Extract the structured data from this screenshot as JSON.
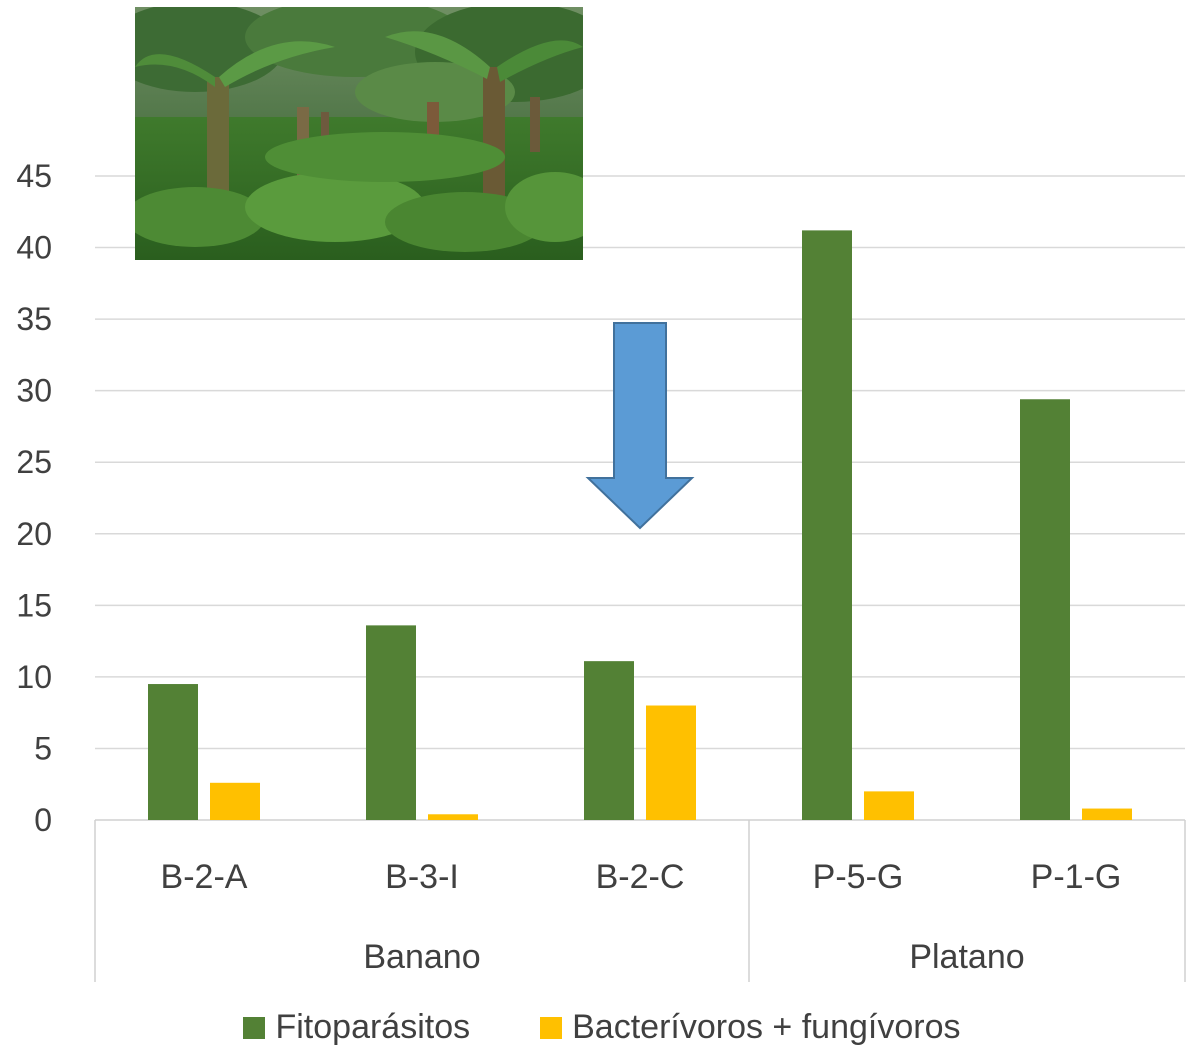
{
  "chart_data": {
    "type": "bar",
    "ylim": [
      0,
      45
    ],
    "yticks": [
      0,
      5,
      10,
      15,
      20,
      25,
      30,
      35,
      40,
      45
    ],
    "grid": true,
    "categories": [
      "B-2-A",
      "B-3-I",
      "B-2-C",
      "P-5-G",
      "P-1-G"
    ],
    "groups": [
      {
        "label": "Banano",
        "categories": [
          "B-2-A",
          "B-3-I",
          "B-2-C"
        ]
      },
      {
        "label": "Platano",
        "categories": [
          "P-5-G",
          "P-1-G"
        ]
      }
    ],
    "series": [
      {
        "name": "Fitoparásitos",
        "color": "#538135",
        "values": [
          9.5,
          13.6,
          11.1,
          41.2,
          29.4
        ]
      },
      {
        "name": "Bacterívoros + fungívoros",
        "color": "#ffc000",
        "values": [
          2.6,
          0.4,
          8.0,
          2.0,
          0.8
        ]
      }
    ],
    "legend_position": "bottom",
    "annotations": [
      {
        "type": "down-arrow",
        "target_category": "B-2-C",
        "color": "#5b9bd5"
      }
    ]
  },
  "image": {
    "subject": "banana-plantation-photo"
  }
}
